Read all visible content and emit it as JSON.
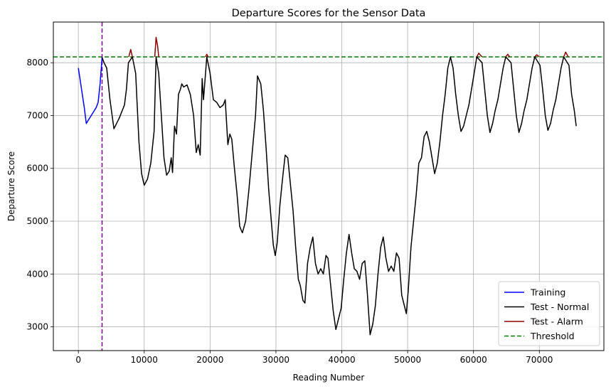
{
  "chart_data": {
    "type": "line",
    "title": "Departure Scores for the Sensor Data",
    "xlabel": "Reading Number",
    "ylabel": "Departure Score",
    "xlim": [
      -3800,
      79800
    ],
    "ylim": [
      2550,
      8770
    ],
    "xticks": [
      0,
      10000,
      20000,
      30000,
      40000,
      50000,
      60000,
      70000
    ],
    "xtick_labels": [
      "0",
      "10000",
      "20000",
      "30000",
      "40000",
      "50000",
      "60000",
      "70000"
    ],
    "yticks": [
      3000,
      4000,
      5000,
      6000,
      7000,
      8000
    ],
    "ytick_labels": [
      "3000",
      "4000",
      "5000",
      "6000",
      "7000",
      "8000"
    ],
    "grid": true,
    "legend_position": "lower-right",
    "threshold": 8110,
    "vline_x": 3600,
    "colors": {
      "training": "#0000ff",
      "test_normal": "#000000",
      "test_alarm": "#8b0000",
      "threshold": "#008000",
      "vline": "#8000a0"
    },
    "series": [
      {
        "name": "Training",
        "color": "#0000ff",
        "style": "solid",
        "points": [
          [
            0,
            7900
          ],
          [
            500,
            7480
          ],
          [
            900,
            7150
          ],
          [
            1200,
            6850
          ],
          [
            1700,
            6950
          ],
          [
            2200,
            7050
          ],
          [
            2700,
            7150
          ],
          [
            3000,
            7250
          ],
          [
            3300,
            7600
          ],
          [
            3600,
            8100
          ]
        ]
      },
      {
        "name": "Test - Normal",
        "color": "#000000",
        "style": "solid",
        "points": [
          [
            3600,
            8100
          ],
          [
            3900,
            8000
          ],
          [
            4300,
            7900
          ],
          [
            4800,
            7300
          ],
          [
            5400,
            6750
          ],
          [
            6200,
            6950
          ],
          [
            7000,
            7200
          ],
          [
            7300,
            7500
          ],
          [
            7600,
            8000
          ],
          [
            8200,
            8110
          ],
          [
            8700,
            7800
          ],
          [
            9200,
            6500
          ],
          [
            9600,
            5900
          ],
          [
            10000,
            5680
          ],
          [
            10500,
            5800
          ],
          [
            11000,
            6100
          ],
          [
            11500,
            6700
          ],
          [
            11800,
            8110
          ],
          [
            12200,
            7800
          ],
          [
            12600,
            7000
          ],
          [
            13000,
            6200
          ],
          [
            13400,
            5870
          ],
          [
            13800,
            5950
          ],
          [
            14100,
            6200
          ],
          [
            14300,
            5920
          ],
          [
            14600,
            6800
          ],
          [
            14900,
            6650
          ],
          [
            15200,
            7400
          ],
          [
            15500,
            7500
          ],
          [
            15700,
            7600
          ],
          [
            16000,
            7540
          ],
          [
            16500,
            7580
          ],
          [
            17000,
            7400
          ],
          [
            17500,
            7000
          ],
          [
            17900,
            6300
          ],
          [
            18200,
            6450
          ],
          [
            18500,
            6250
          ],
          [
            18800,
            7700
          ],
          [
            19000,
            7300
          ],
          [
            19500,
            8110
          ],
          [
            20000,
            7800
          ],
          [
            20500,
            7300
          ],
          [
            21000,
            7250
          ],
          [
            21500,
            7150
          ],
          [
            22000,
            7200
          ],
          [
            22300,
            7300
          ],
          [
            22700,
            6450
          ],
          [
            23000,
            6650
          ],
          [
            23300,
            6550
          ],
          [
            23700,
            6000
          ],
          [
            24100,
            5500
          ],
          [
            24500,
            4900
          ],
          [
            24900,
            4780
          ],
          [
            25400,
            5000
          ],
          [
            25900,
            5600
          ],
          [
            26400,
            6300
          ],
          [
            26900,
            7000
          ],
          [
            27200,
            7750
          ],
          [
            27700,
            7600
          ],
          [
            28100,
            7100
          ],
          [
            28500,
            6400
          ],
          [
            28900,
            5600
          ],
          [
            29300,
            5000
          ],
          [
            29600,
            4550
          ],
          [
            29900,
            4350
          ],
          [
            30200,
            4600
          ],
          [
            30600,
            5300
          ],
          [
            31000,
            5800
          ],
          [
            31400,
            6250
          ],
          [
            31800,
            6200
          ],
          [
            32200,
            5700
          ],
          [
            32600,
            5200
          ],
          [
            33000,
            4500
          ],
          [
            33400,
            3900
          ],
          [
            33700,
            3780
          ],
          [
            34100,
            3500
          ],
          [
            34400,
            3450
          ],
          [
            34800,
            4200
          ],
          [
            35200,
            4500
          ],
          [
            35600,
            4700
          ],
          [
            36000,
            4200
          ],
          [
            36400,
            4000
          ],
          [
            36800,
            4100
          ],
          [
            37200,
            4000
          ],
          [
            37600,
            4350
          ],
          [
            37900,
            4300
          ],
          [
            38300,
            3800
          ],
          [
            38700,
            3300
          ],
          [
            39100,
            2950
          ],
          [
            39500,
            3150
          ],
          [
            39900,
            3350
          ],
          [
            40300,
            3900
          ],
          [
            40700,
            4400
          ],
          [
            41100,
            4750
          ],
          [
            41500,
            4400
          ],
          [
            41900,
            4100
          ],
          [
            42300,
            4050
          ],
          [
            42700,
            3900
          ],
          [
            43100,
            4200
          ],
          [
            43500,
            4250
          ],
          [
            43900,
            3600
          ],
          [
            44300,
            2850
          ],
          [
            44700,
            3050
          ],
          [
            45100,
            3400
          ],
          [
            45500,
            4000
          ],
          [
            45900,
            4500
          ],
          [
            46300,
            4700
          ],
          [
            46700,
            4300
          ],
          [
            47100,
            4050
          ],
          [
            47500,
            4150
          ],
          [
            47900,
            4050
          ],
          [
            48300,
            4400
          ],
          [
            48700,
            4300
          ],
          [
            49100,
            3600
          ],
          [
            49500,
            3400
          ],
          [
            49800,
            3250
          ],
          [
            50100,
            3700
          ],
          [
            50500,
            4500
          ],
          [
            50900,
            5000
          ],
          [
            51300,
            5500
          ],
          [
            51700,
            6100
          ],
          [
            52100,
            6200
          ],
          [
            52500,
            6600
          ],
          [
            52900,
            6700
          ],
          [
            53300,
            6500
          ],
          [
            53700,
            6200
          ],
          [
            54100,
            5900
          ],
          [
            54500,
            6100
          ],
          [
            54900,
            6500
          ],
          [
            55300,
            7000
          ],
          [
            55700,
            7400
          ],
          [
            56100,
            7900
          ],
          [
            56500,
            8110
          ],
          [
            56900,
            7900
          ],
          [
            57300,
            7400
          ],
          [
            57700,
            7000
          ],
          [
            58100,
            6700
          ],
          [
            58500,
            6800
          ],
          [
            58900,
            7000
          ],
          [
            59300,
            7200
          ],
          [
            59700,
            7500
          ],
          [
            60100,
            7800
          ],
          [
            60500,
            8110
          ],
          [
            61300,
            8000
          ],
          [
            61700,
            7500
          ],
          [
            62100,
            7000
          ],
          [
            62500,
            6680
          ],
          [
            62900,
            6850
          ],
          [
            63300,
            7100
          ],
          [
            63700,
            7300
          ],
          [
            64100,
            7600
          ],
          [
            64500,
            7900
          ],
          [
            64900,
            8110
          ],
          [
            65700,
            8000
          ],
          [
            66100,
            7500
          ],
          [
            66500,
            7000
          ],
          [
            66900,
            6680
          ],
          [
            67300,
            6850
          ],
          [
            67700,
            7100
          ],
          [
            68100,
            7300
          ],
          [
            68500,
            7600
          ],
          [
            68900,
            7900
          ],
          [
            69300,
            8110
          ],
          [
            70100,
            7950
          ],
          [
            70500,
            7500
          ],
          [
            70900,
            7000
          ],
          [
            71300,
            6720
          ],
          [
            71700,
            6850
          ],
          [
            72100,
            7100
          ],
          [
            72500,
            7300
          ],
          [
            72900,
            7600
          ],
          [
            73300,
            7900
          ],
          [
            73700,
            8110
          ],
          [
            74500,
            7950
          ],
          [
            74900,
            7400
          ],
          [
            75300,
            7100
          ],
          [
            75600,
            6800
          ]
        ]
      },
      {
        "name": "Test - Alarm",
        "color": "#8b0000",
        "style": "solid",
        "segments": [
          [
            [
              7650,
              8110
            ],
            [
              7950,
              8250
            ],
            [
              8200,
              8110
            ]
          ],
          [
            [
              11600,
              8110
            ],
            [
              11800,
              8480
            ],
            [
              12050,
              8300
            ],
            [
              12200,
              8110
            ]
          ],
          [
            [
              19300,
              8110
            ],
            [
              19500,
              8160
            ],
            [
              19700,
              8110
            ]
          ],
          [
            [
              60500,
              8110
            ],
            [
              60800,
              8180
            ],
            [
              61300,
              8110
            ]
          ],
          [
            [
              64900,
              8110
            ],
            [
              65200,
              8160
            ],
            [
              65500,
              8110
            ]
          ],
          [
            [
              69300,
              8110
            ],
            [
              69600,
              8150
            ],
            [
              70000,
              8110
            ]
          ],
          [
            [
              73700,
              8110
            ],
            [
              74000,
              8200
            ],
            [
              74400,
              8110
            ]
          ]
        ]
      },
      {
        "name": "Threshold",
        "color": "#008000",
        "style": "dashed"
      }
    ]
  }
}
